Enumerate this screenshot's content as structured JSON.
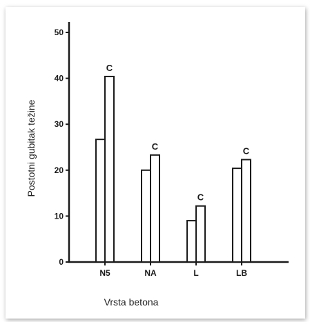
{
  "chart_data": {
    "type": "bar",
    "categories": [
      "N5",
      "NA",
      "L",
      "LB"
    ],
    "series": [
      {
        "values": [
          26.7,
          20.0,
          9.0,
          20.4
        ]
      },
      {
        "values": [
          40.4,
          23.3,
          12.2,
          22.3
        ],
        "label": "C"
      }
    ],
    "xlabel": "Vrsta betona",
    "ylabel": "Postotni gubitak težine",
    "yticks": [
      "0",
      "10",
      "20",
      "30",
      "40",
      "50"
    ],
    "ylim": [
      0,
      50
    ],
    "grid": false,
    "legend": "none",
    "colors": {
      "bar_fill": "#ffffff",
      "bar_stroke": "#1a1a1a",
      "axis": "#1a1a1a"
    }
  }
}
